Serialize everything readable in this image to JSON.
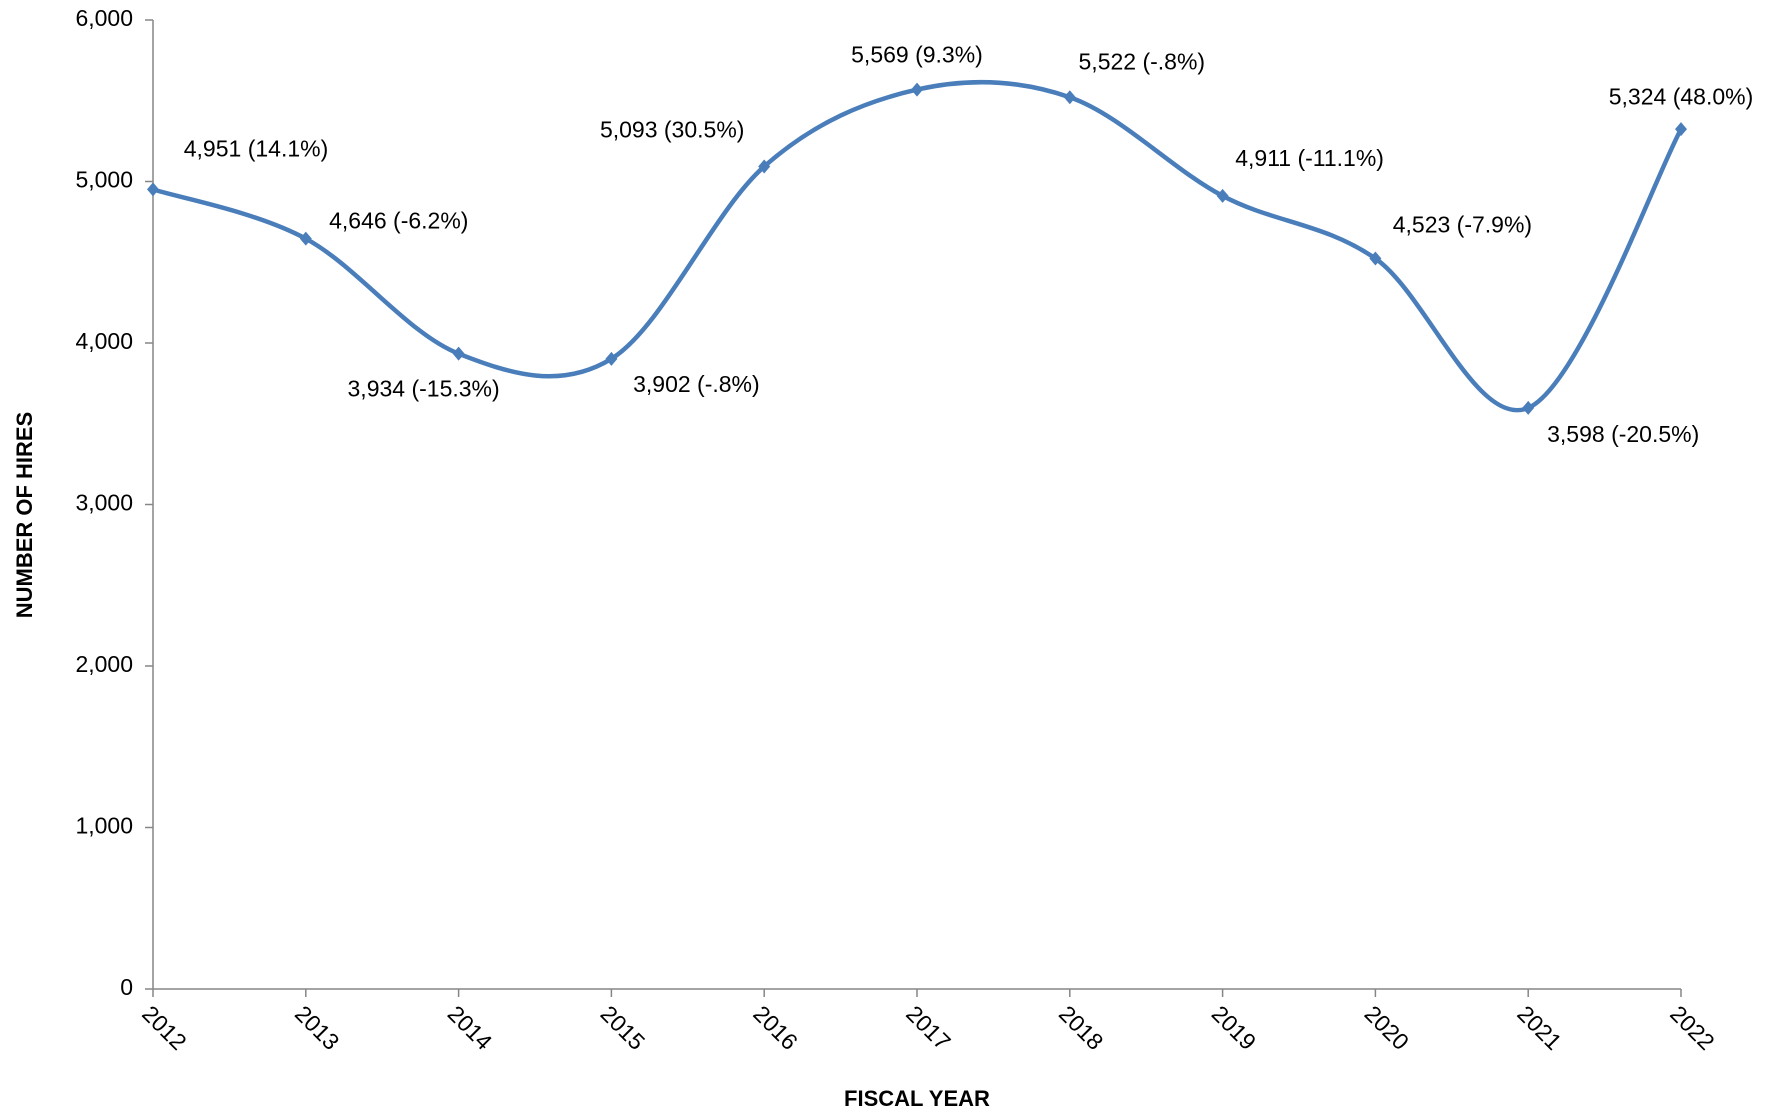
{
  "chart_data": {
    "type": "line",
    "x_label": "FISCAL YEAR",
    "y_label": "NUMBER OF HIRES",
    "categories": [
      "2012",
      "2013",
      "2014",
      "2015",
      "2016",
      "2017",
      "2018",
      "2019",
      "2020",
      "2021",
      "2022"
    ],
    "series": [
      {
        "color": "#4a7ebb",
        "values": [
          4951,
          4646,
          3934,
          3902,
          5093,
          5569,
          5522,
          4911,
          4523,
          3598,
          5324
        ],
        "value_labels": [
          "4,951 (14.1%)",
          "4,646 (-6.2%)",
          "3,934 (-15.3%)",
          "3,902 (-.8%)",
          "5,093 (30.5%)",
          "5,569 (9.3%)",
          "5,522 (-.8%)",
          "4,911 (-11.1%)",
          "4,523 (-7.9%)",
          "3,598 (-20.5%)",
          "5,324 (48.0%)"
        ]
      }
    ],
    "ylim": [
      0,
      6000
    ],
    "yticks": [
      0,
      {
        "value": 1000,
        "label": "1,000"
      },
      {
        "value": 2000,
        "label": "2,000"
      },
      {
        "value": 3000,
        "label": "3,000"
      },
      {
        "value": 4000,
        "label": "4,000"
      },
      {
        "value": 5000,
        "label": "5,000"
      },
      {
        "value": 6000,
        "label": "6,000"
      }
    ],
    "smooth": true
  }
}
